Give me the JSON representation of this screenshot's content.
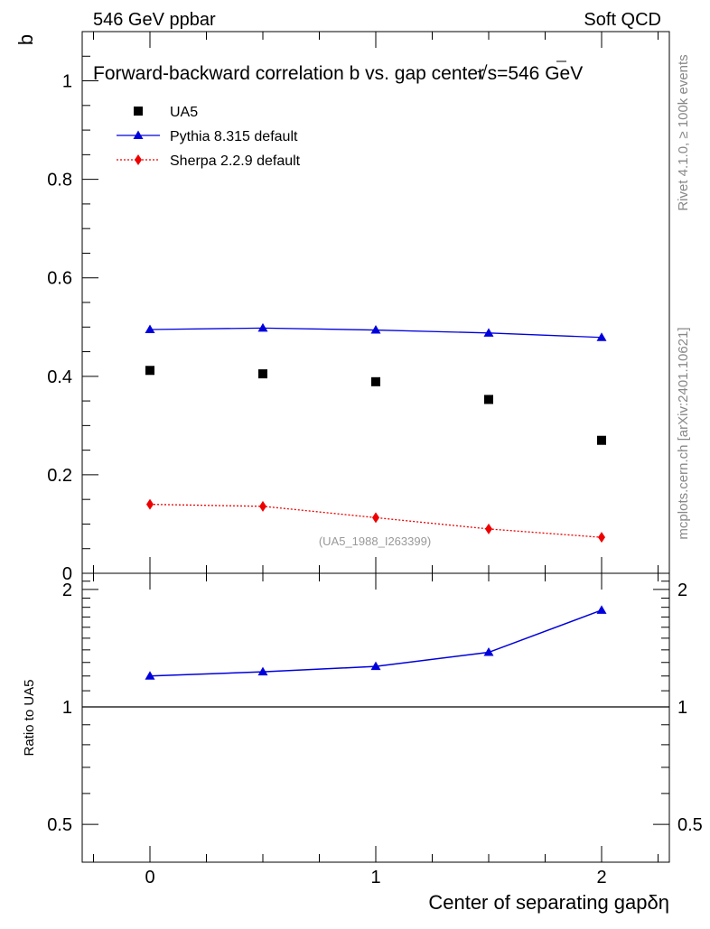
{
  "header": {
    "left": "546 GeV ppbar",
    "right": "Soft QCD"
  },
  "side_labels": {
    "rivet": "Rivet 4.1.0, ≥ 100k events",
    "mcplots": "mcplots.cern.ch [arXiv:2401.10621]"
  },
  "watermark": "(UA5_1988_I263399)",
  "colors": {
    "data": "#000000",
    "pythia": "#0000dd",
    "sherpa": "#ee0000"
  },
  "chart_data": [
    {
      "type": "scatter",
      "title": "Forward-backward correlation b  vs. gap center",
      "title_suffix": "=546 GeV",
      "sqrt_symbol": "√",
      "sqrt_arg": "s",
      "ylabel": "b",
      "xlabel": "Center of separating gap",
      "xlabel_symbol": "δη",
      "xlim": [
        -0.3,
        2.3
      ],
      "ylim": [
        0,
        1.1
      ],
      "yticks": [
        0,
        0.2,
        0.4,
        0.6,
        0.8,
        1
      ],
      "ytick_labels": [
        "0",
        "0.2",
        "0.4",
        "0.6",
        "0.8",
        "1"
      ],
      "x": [
        0,
        0.5,
        1,
        1.5,
        2
      ],
      "series": [
        {
          "name": "UA5",
          "style": "markers",
          "marker": "square",
          "color": "#000000",
          "values": [
            0.412,
            0.405,
            0.389,
            0.353,
            0.27
          ]
        },
        {
          "name": "Pythia 8.315 default",
          "style": "line",
          "marker": "triangle",
          "color": "#0000dd",
          "values": [
            0.495,
            0.498,
            0.494,
            0.488,
            0.479
          ]
        },
        {
          "name": "Sherpa 2.2.9 default",
          "style": "dotted",
          "marker": "diamond",
          "color": "#ee0000",
          "values": [
            0.14,
            0.136,
            0.113,
            0.09,
            0.073
          ]
        }
      ]
    },
    {
      "type": "line",
      "title": "",
      "ylabel": "Ratio to UA5",
      "xlabel": "Center of separating gap",
      "xlim": [
        -0.3,
        2.3
      ],
      "ylim": [
        0.4,
        2.2
      ],
      "ylog": true,
      "yticks": [
        0.5,
        1,
        2
      ],
      "ytick_labels": [
        "0.5",
        "1",
        "2"
      ],
      "xticks": [
        0,
        1,
        2
      ],
      "xtick_labels": [
        "0",
        "1",
        "2"
      ],
      "reference_line": 1,
      "x": [
        0,
        0.5,
        1,
        1.5,
        2
      ],
      "series": [
        {
          "name": "Pythia 8.315 default",
          "marker": "triangle",
          "color": "#0000dd",
          "values": [
            1.2,
            1.23,
            1.27,
            1.38,
            1.77
          ]
        }
      ]
    }
  ]
}
